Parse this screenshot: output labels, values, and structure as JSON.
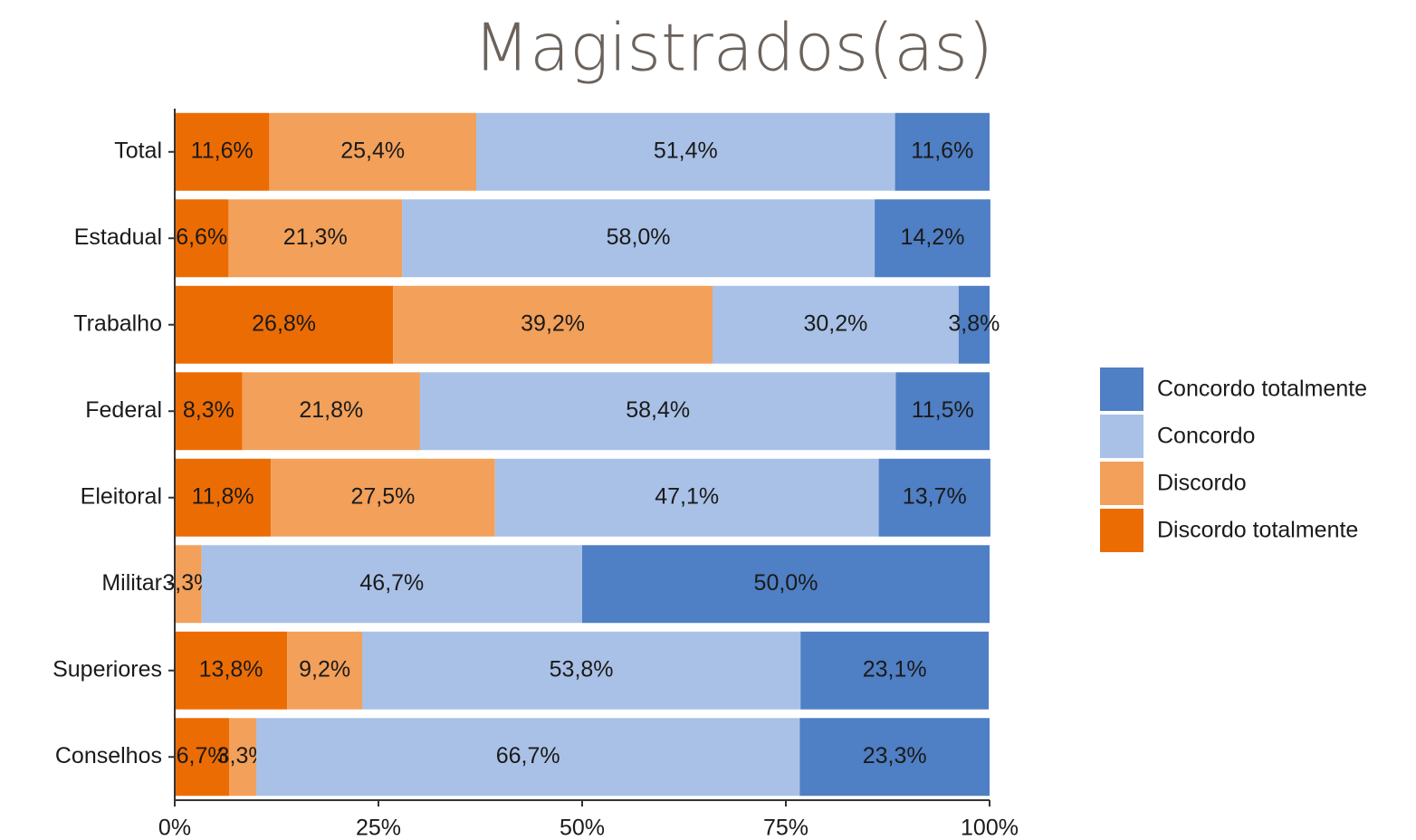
{
  "chart_data": {
    "type": "stacked_barh",
    "title": "Magistrados(as)",
    "categories": [
      "Total",
      "Estadual",
      "Trabalho",
      "Federal",
      "Eleitoral",
      "Militar",
      "Superiores",
      "Conselhos"
    ],
    "series": [
      {
        "name": "Discordo totalmente",
        "color": "#ec6c04",
        "values": [
          11.6,
          6.6,
          26.8,
          8.3,
          11.8,
          null,
          13.8,
          6.7
        ],
        "value_labels": [
          "11,6%",
          "6,6%",
          "26,8%",
          "8,3%",
          "11,8%",
          null,
          "13,8%",
          "6,7%"
        ]
      },
      {
        "name": "Discordo",
        "color": "#f2a05a",
        "values": [
          25.4,
          21.3,
          39.2,
          21.8,
          27.5,
          3.3,
          9.2,
          3.3
        ],
        "value_labels": [
          "25,4%",
          "21,3%",
          "39,2%",
          "21,8%",
          "27,5%",
          "3,3%",
          "9,2%",
          "3,3%"
        ]
      },
      {
        "name": "Concordo",
        "color": "#a9c1e6",
        "values": [
          51.4,
          58.0,
          30.2,
          58.4,
          47.1,
          46.7,
          53.8,
          66.7
        ],
        "value_labels": [
          "51,4%",
          "58,0%",
          "30,2%",
          "58,4%",
          "47,1%",
          "46,7%",
          "53,8%",
          "66,7%"
        ]
      },
      {
        "name": "Concordo totalmente",
        "color": "#4f7fc4",
        "values": [
          11.6,
          14.2,
          3.8,
          11.5,
          13.7,
          50.0,
          23.1,
          23.3
        ],
        "value_labels": [
          "11,6%",
          "14,2%",
          "3,8%",
          "11,5%",
          "13,7%",
          "50,0%",
          "23,1%",
          "23,3%"
        ]
      }
    ],
    "xlim": [
      0,
      100
    ],
    "xticks": [
      {
        "value": 0,
        "label": "0%"
      },
      {
        "value": 25,
        "label": "25%"
      },
      {
        "value": 50,
        "label": "50%"
      },
      {
        "value": 75,
        "label": "75%"
      },
      {
        "value": 100,
        "label": "100%"
      }
    ],
    "legend": "right"
  }
}
